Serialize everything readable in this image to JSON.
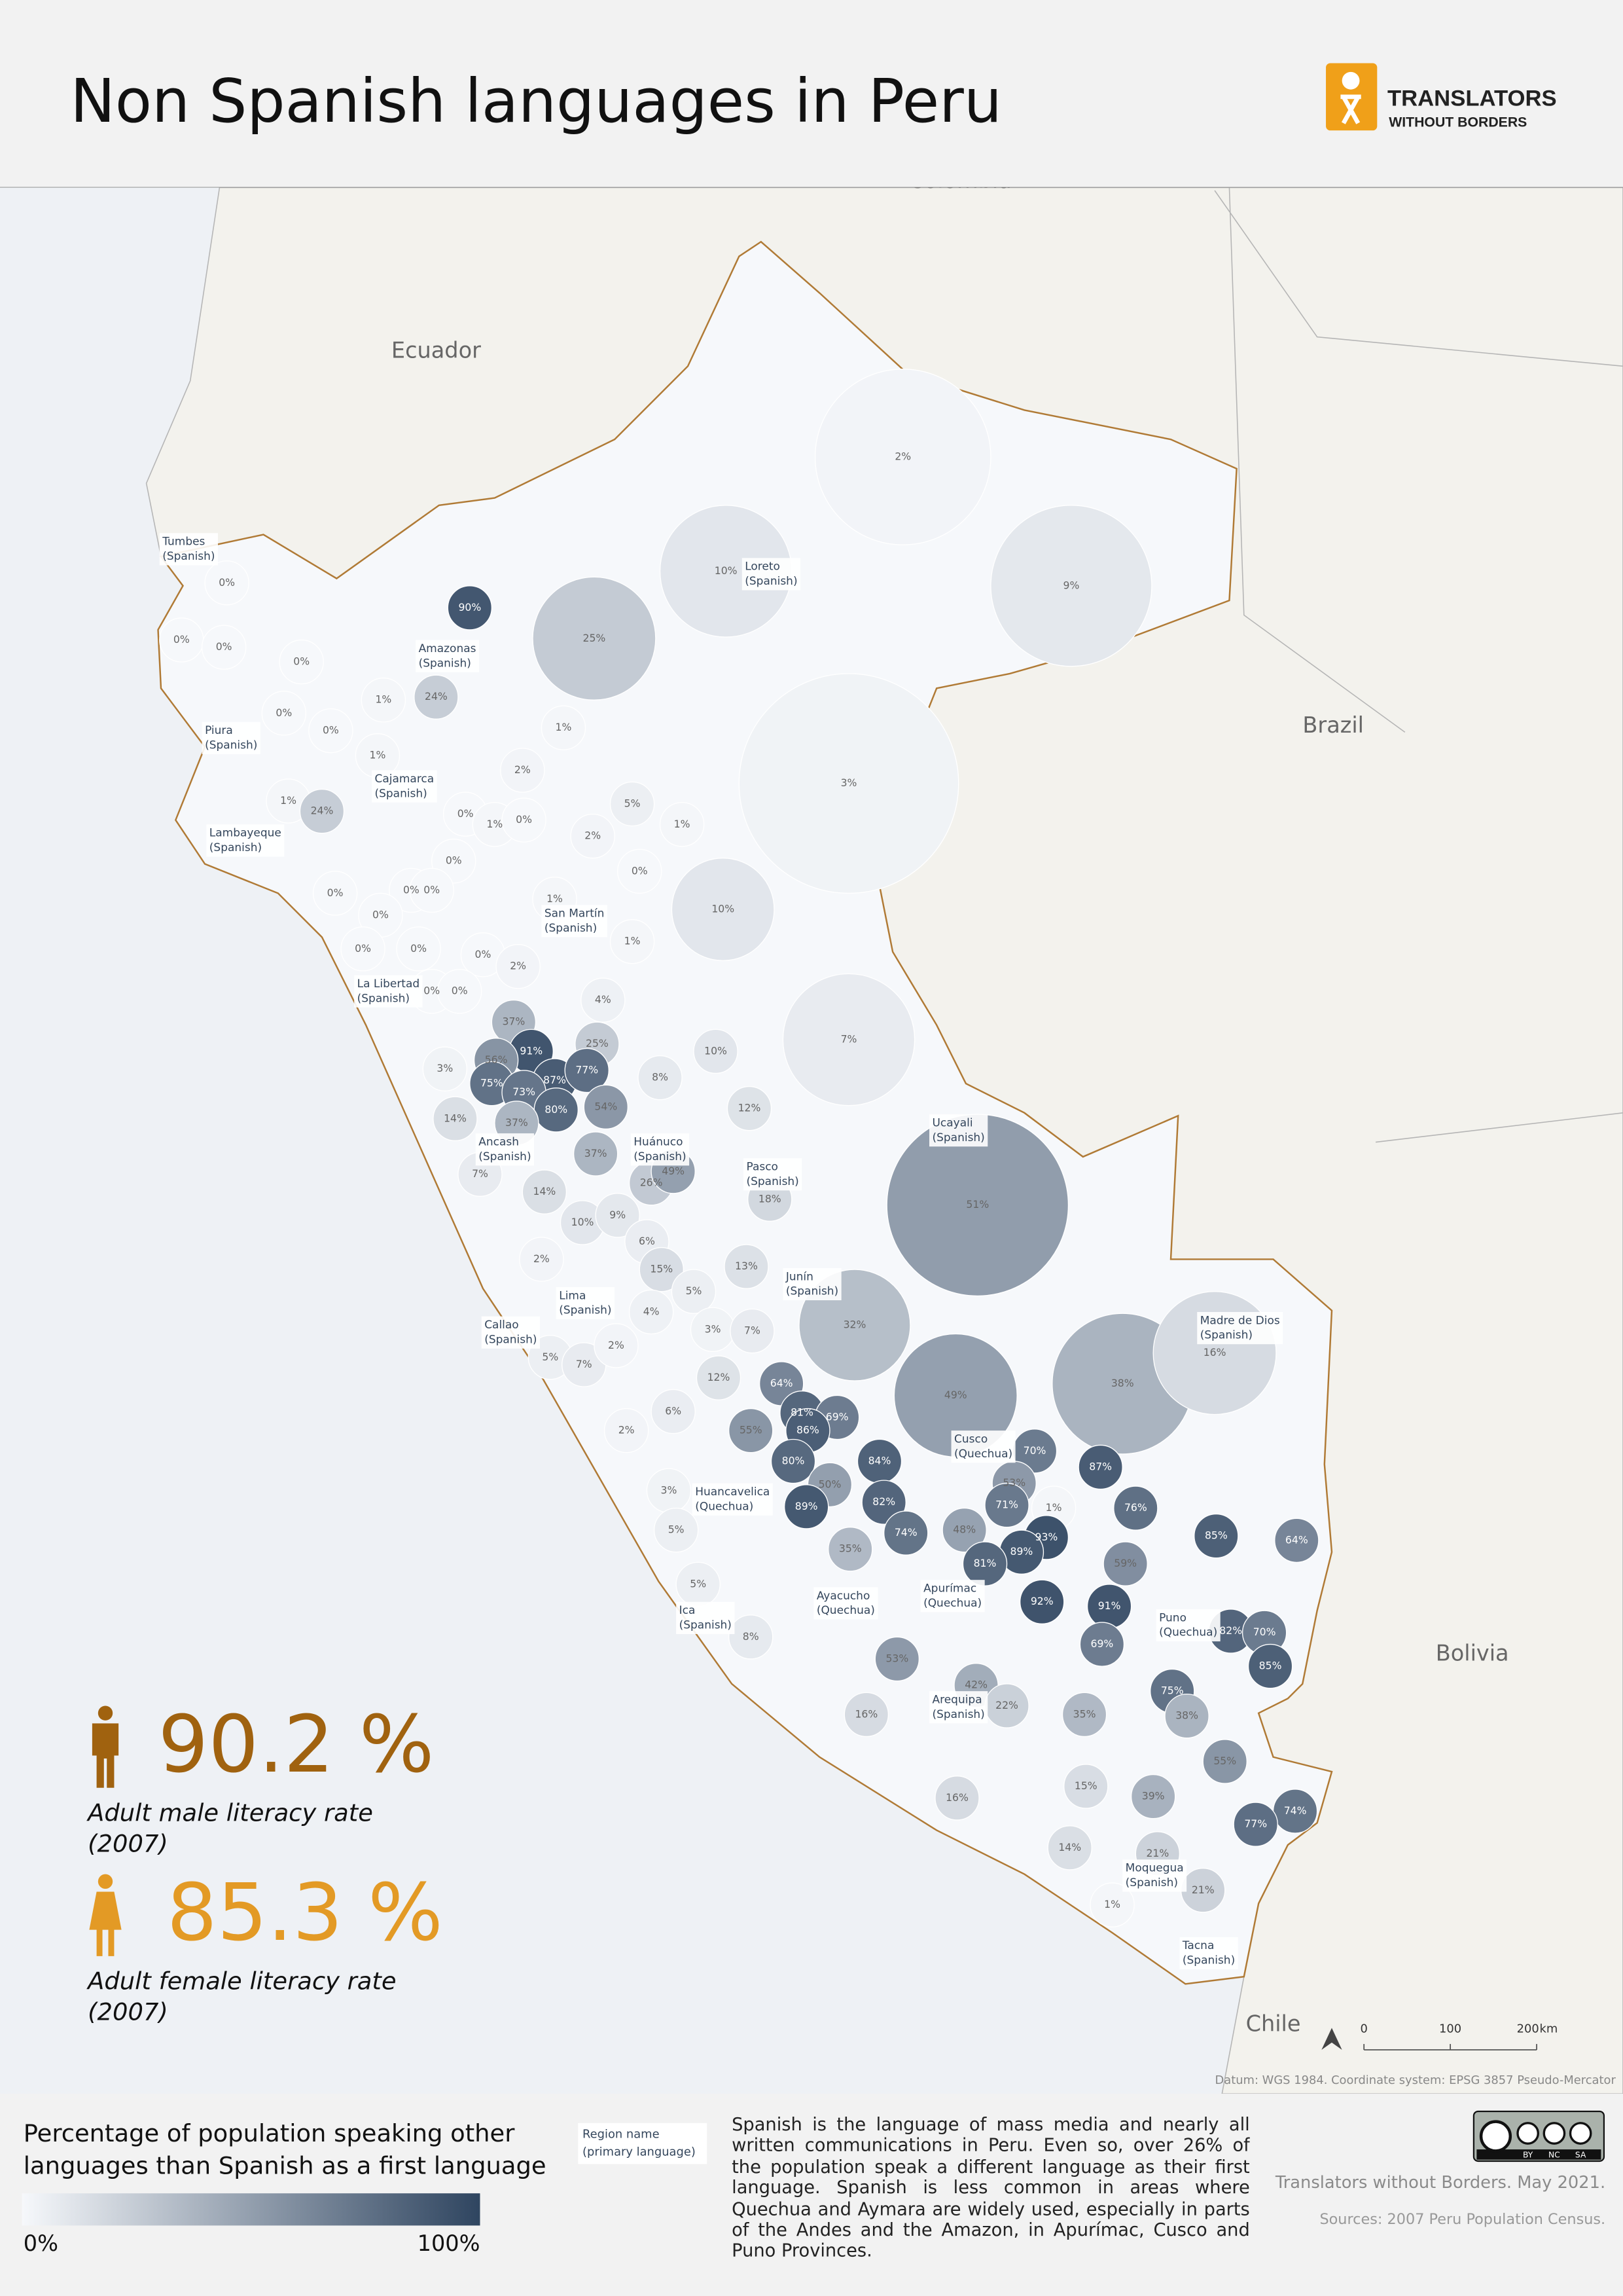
{
  "header": {
    "title": "Non Spanish languages in Peru",
    "logo_line1": "TRANSLATORS",
    "logo_line2": "WITHOUT BORDERS"
  },
  "map": {
    "type": "choropleth",
    "countries": [
      "Colombia",
      "Ecuador",
      "Brazil",
      "Bolivia",
      "Chile"
    ],
    "regions": [
      {
        "name": "Tumbes",
        "language": "(Spanish)"
      },
      {
        "name": "Piura",
        "language": "(Spanish)"
      },
      {
        "name": "Lambayeque",
        "language": "(Spanish)"
      },
      {
        "name": "Cajamarca",
        "language": "(Spanish)"
      },
      {
        "name": "Amazonas",
        "language": "(Spanish)"
      },
      {
        "name": "Loreto",
        "language": "(Spanish)"
      },
      {
        "name": "San Martín",
        "language": "(Spanish)"
      },
      {
        "name": "La Libertad",
        "language": "(Spanish)"
      },
      {
        "name": "Ancash",
        "language": "(Spanish)"
      },
      {
        "name": "Huánuco",
        "language": "(Spanish)"
      },
      {
        "name": "Pasco",
        "language": "(Spanish)"
      },
      {
        "name": "Ucayali",
        "language": "(Spanish)"
      },
      {
        "name": "Junín",
        "language": "(Spanish)"
      },
      {
        "name": "Lima",
        "language": "(Spanish)"
      },
      {
        "name": "Callao",
        "language": "(Spanish)"
      },
      {
        "name": "Madre de Dios",
        "language": "(Spanish)"
      },
      {
        "name": "Cusco",
        "language": "(Quechua)"
      },
      {
        "name": "Huancavelica",
        "language": "(Quechua)"
      },
      {
        "name": "Ayacucho",
        "language": "(Quechua)"
      },
      {
        "name": "Apurímac",
        "language": "(Quechua)"
      },
      {
        "name": "Ica",
        "language": "(Spanish)"
      },
      {
        "name": "Puno",
        "language": "(Quechua)"
      },
      {
        "name": "Arequipa",
        "language": "(Spanish)"
      },
      {
        "name": "Moquegua",
        "language": "(Spanish)"
      },
      {
        "name": "Tacna",
        "language": "(Spanish)"
      }
    ],
    "values": [
      90,
      25,
      24,
      2,
      10,
      9,
      3,
      0,
      0,
      0,
      0,
      0,
      0,
      1,
      1,
      2,
      1,
      1,
      24,
      0,
      1,
      0,
      2,
      5,
      1,
      0,
      0,
      0,
      0,
      1,
      1,
      0,
      0,
      0,
      2,
      10,
      0,
      0,
      0,
      0,
      7,
      4,
      10,
      37,
      91,
      56,
      25,
      87,
      77,
      75,
      73,
      80,
      54,
      3,
      8,
      14,
      37,
      12,
      37,
      26,
      49,
      7,
      14,
      51,
      18,
      10,
      9,
      6,
      2,
      13,
      15,
      5,
      4,
      3,
      7,
      32,
      38,
      16,
      5,
      7,
      2,
      12,
      64,
      6,
      49,
      81,
      69,
      55,
      86,
      80,
      84,
      2,
      50,
      70,
      87,
      53,
      3,
      89,
      82,
      71,
      76,
      1,
      5,
      74,
      48,
      93,
      85,
      64,
      35,
      89,
      81,
      59,
      5,
      92,
      91,
      82,
      70,
      8,
      53,
      69,
      42,
      85,
      22,
      75,
      16,
      35,
      38,
      55,
      15,
      16,
      39,
      74,
      77,
      14,
      21,
      21,
      1
    ],
    "value_labels": [
      "90%",
      "25%",
      "24%",
      "2%",
      "10%",
      "9%",
      "3%",
      "0%",
      "0%",
      "0%",
      "0%",
      "0%",
      "0%",
      "1%",
      "1%",
      "2%",
      "1%",
      "1%",
      "24%",
      "0%",
      "1%",
      "0%",
      "2%",
      "5%",
      "1%",
      "0%",
      "0%",
      "0%",
      "0%",
      "1%",
      "1%",
      "0%",
      "0%",
      "0%",
      "2%",
      "10%",
      "0%",
      "0%",
      "0%",
      "0%",
      "7%",
      "4%",
      "10%",
      "37%",
      "91%",
      "56%",
      "25%",
      "87%",
      "77%",
      "75%",
      "73%",
      "80%",
      "54%",
      "3%",
      "8%",
      "14%",
      "37%",
      "12%",
      "37%",
      "26%",
      "49%",
      "7%",
      "14%",
      "51%",
      "18%",
      "10%",
      "9%",
      "6%",
      "2%",
      "13%",
      "15%",
      "5%",
      "4%",
      "3%",
      "7%",
      "32%",
      "38%",
      "16%",
      "5%",
      "7%",
      "2%",
      "12%",
      "64%",
      "6%",
      "49%",
      "81%",
      "69%",
      "55%",
      "86%",
      "80%",
      "84%",
      "2%",
      "50%",
      "70%",
      "87%",
      "53%",
      "3%",
      "89%",
      "82%",
      "71%",
      "76%",
      "1%",
      "5%",
      "74%",
      "48%",
      "93%",
      "85%",
      "64%",
      "35%",
      "89%",
      "81%",
      "59%",
      "5%",
      "92%",
      "91%",
      "82%",
      "70%",
      "8%",
      "53%",
      "69%",
      "42%",
      "85%",
      "22%",
      "75%",
      "16%",
      "35%",
      "38%",
      "55%",
      "15%",
      "16%",
      "39%",
      "74%",
      "77%",
      "14%",
      "21%",
      "21%",
      "1%"
    ],
    "color_scale": {
      "min": 0,
      "max": 100,
      "colors": [
        "#f6f8fb",
        "#2f4560"
      ]
    },
    "scale_bar": {
      "ticks": [
        0,
        100,
        200
      ],
      "unit": "km"
    },
    "datum": "Datum: WGS 1984. Coordinate system: EPSG 3857 Pseudo-Mercator"
  },
  "stats": [
    {
      "value": "90.2 %",
      "label_lines": [
        "Adult male literacy rate",
        "(2007)"
      ],
      "color": "#a0620f"
    },
    {
      "value": "85.3 %",
      "label_lines": [
        "Adult female literacy rate",
        "(2007)"
      ],
      "color": "#e39a25"
    }
  ],
  "legend": {
    "title_lines": [
      "Percentage of population speaking other",
      "languages than Spanish as a first language"
    ],
    "min_label": "0%",
    "max_label": "100%",
    "key_lines": [
      "Region name",
      "(primary language)"
    ]
  },
  "description": "Spanish is the language of mass media and nearly all written communications in Peru. Even so, over 26% of the population speak a different language as their first language. Spanish is less common in areas where Quechua and Aymara are widely used, especially in parts of the Andes and the Amazon, in Apurímac, Cusco and Puno Provinces.",
  "footer": {
    "license": [
      "BY",
      "NC",
      "SA"
    ],
    "credit": "Translators without Borders. May 2021.",
    "sources": "Sources: 2007 Peru Population Census."
  }
}
